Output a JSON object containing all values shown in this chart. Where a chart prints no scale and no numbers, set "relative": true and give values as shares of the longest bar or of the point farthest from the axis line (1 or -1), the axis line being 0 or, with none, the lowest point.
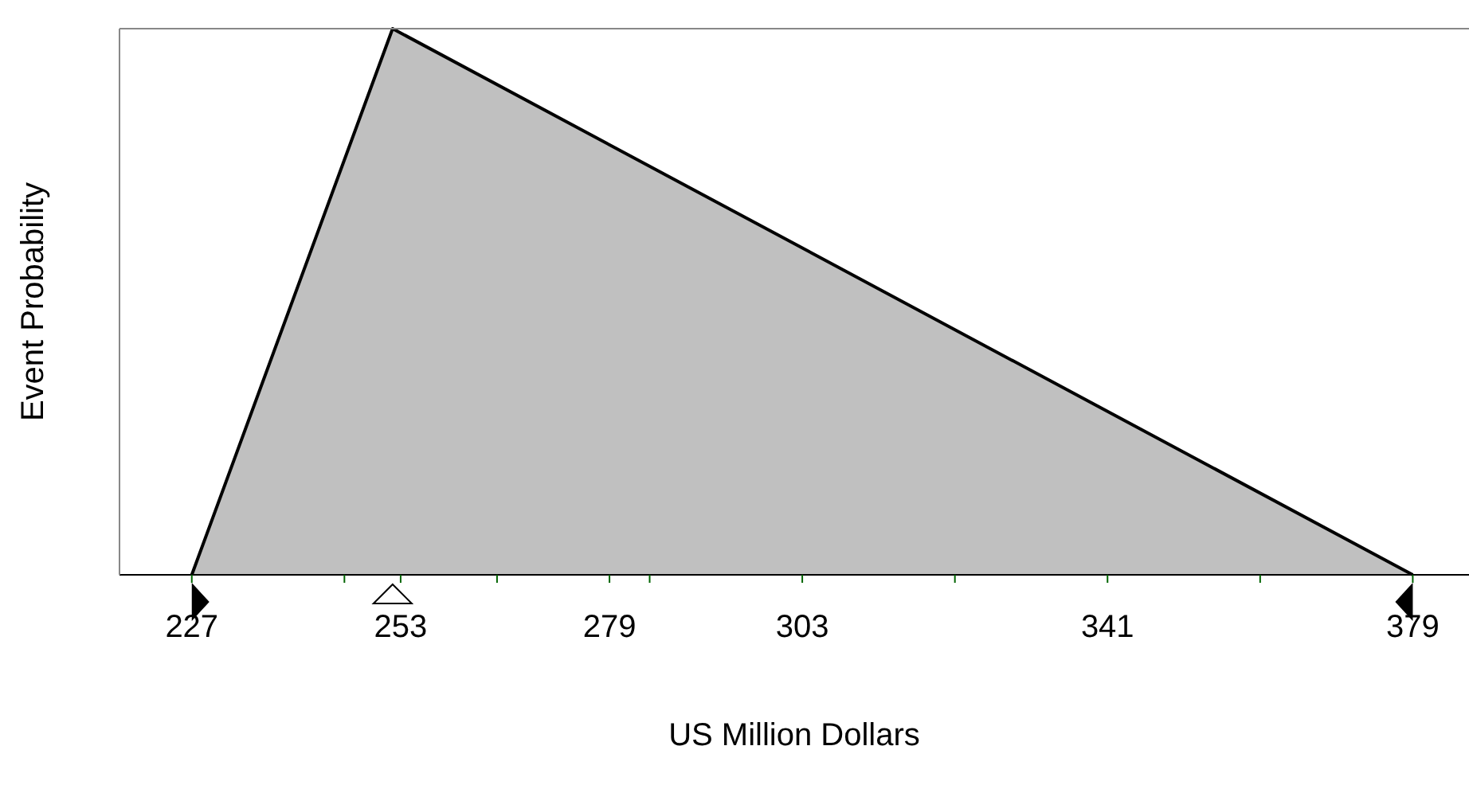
{
  "chart_data": {
    "type": "area",
    "relative": true,
    "xlabel": "US Million Dollars",
    "ylabel": "Event Probability",
    "x": [
      227,
      252,
      379
    ],
    "series": [
      {
        "color": "#c0c0c0",
        "values": [
          0,
          1,
          0
        ]
      }
    ],
    "xlim": [
      218,
      386
    ],
    "xticks": [
      227,
      {
        "value": 246,
        "label": null
      },
      253,
      {
        "value": 265,
        "label": null
      },
      279,
      {
        "value": 284,
        "label": null
      },
      303,
      {
        "value": 322,
        "label": null
      },
      341,
      {
        "value": 360,
        "label": null
      },
      379
    ],
    "grid": false
  }
}
